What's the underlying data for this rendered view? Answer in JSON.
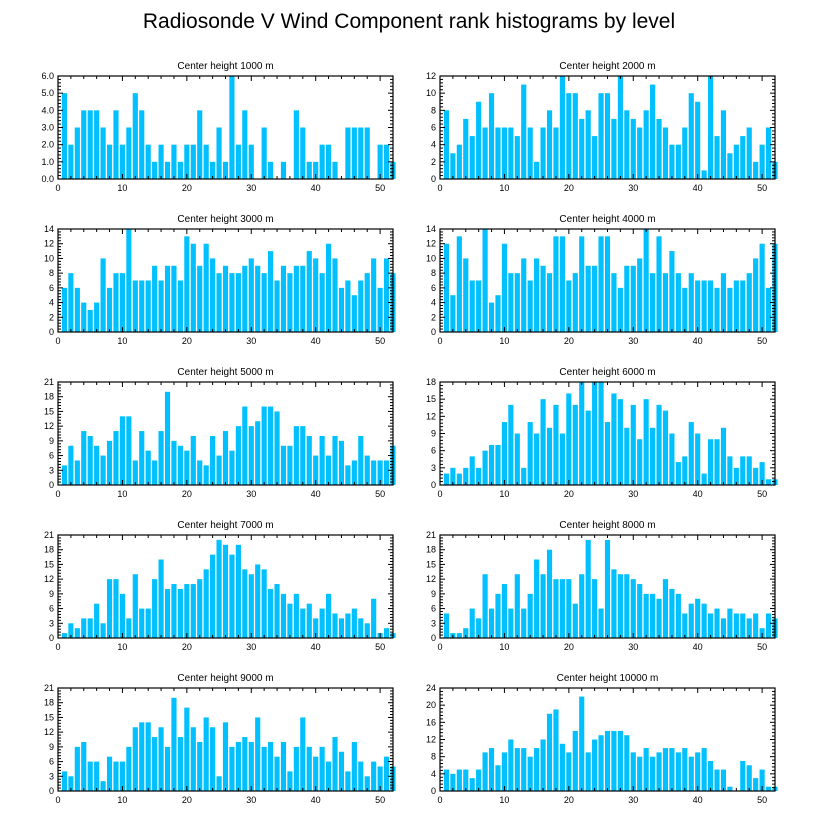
{
  "title": "Radiosonde V Wind Component rank histograms by level",
  "colors": {
    "bar": "#00c0ff",
    "axis": "#000000"
  },
  "chart_data": [
    {
      "type": "bar",
      "title": "Center height 1000 m",
      "xlim": [
        0,
        52
      ],
      "ylim": [
        0,
        6
      ],
      "xticks": [
        0,
        10,
        20,
        30,
        40,
        50
      ],
      "yticks": [
        0,
        1,
        2,
        3,
        4,
        5,
        6
      ],
      "ytick_labels": [
        "0.0",
        "1.0",
        "2.0",
        "3.0",
        "4.0",
        "5.0",
        "6.0"
      ],
      "values": [
        5,
        2,
        3,
        4,
        4,
        4,
        3,
        2,
        4,
        2,
        3,
        5,
        4,
        2,
        1,
        2,
        1,
        2,
        1,
        2,
        2,
        4,
        2,
        1,
        3,
        1,
        6,
        2,
        4,
        2,
        0,
        3,
        1,
        0,
        1,
        0,
        4,
        3,
        1,
        1,
        2,
        2,
        1,
        0,
        3,
        3,
        3,
        3,
        0,
        2,
        2,
        1
      ]
    },
    {
      "type": "bar",
      "title": "Center height 2000 m",
      "xlim": [
        0,
        52
      ],
      "ylim": [
        0,
        12
      ],
      "xticks": [
        0,
        10,
        20,
        30,
        40,
        50
      ],
      "yticks": [
        0,
        2,
        4,
        6,
        8,
        10,
        12
      ],
      "ytick_labels": [
        "0",
        "2",
        "4",
        "6",
        "8",
        "10",
        "12"
      ],
      "values": [
        8,
        3,
        4,
        7,
        5,
        9,
        6,
        10,
        6,
        6,
        6,
        5,
        11,
        6,
        2,
        6,
        8,
        6,
        12,
        10,
        10,
        7,
        8,
        5,
        10,
        10,
        7,
        12,
        8,
        7,
        6,
        8,
        11,
        7,
        6,
        4,
        4,
        6,
        10,
        9,
        1,
        12,
        5,
        8,
        3,
        4,
        5,
        6,
        2,
        4,
        6,
        2
      ]
    },
    {
      "type": "bar",
      "title": "Center height 3000 m",
      "xlim": [
        0,
        52
      ],
      "ylim": [
        0,
        14
      ],
      "xticks": [
        0,
        10,
        20,
        30,
        40,
        50
      ],
      "yticks": [
        0,
        2,
        4,
        6,
        8,
        10,
        12,
        14
      ],
      "ytick_labels": [
        "0",
        "2",
        "4",
        "6",
        "8",
        "10",
        "12",
        "14"
      ],
      "values": [
        6,
        8,
        6,
        4,
        3,
        4,
        10,
        6,
        8,
        8,
        14,
        7,
        7,
        7,
        9,
        7,
        9,
        9,
        7,
        13,
        12,
        9,
        12,
        10,
        8,
        9,
        8,
        8,
        9,
        10,
        9,
        8,
        11,
        7,
        9,
        8,
        9,
        9,
        11,
        10,
        8,
        12,
        10,
        6,
        7,
        5,
        7,
        8,
        10,
        6,
        10,
        8
      ]
    },
    {
      "type": "bar",
      "title": "Center height 4000 m",
      "xlim": [
        0,
        52
      ],
      "ylim": [
        0,
        14
      ],
      "xticks": [
        0,
        10,
        20,
        30,
        40,
        50
      ],
      "yticks": [
        0,
        2,
        4,
        6,
        8,
        10,
        12,
        14
      ],
      "ytick_labels": [
        "0",
        "2",
        "4",
        "6",
        "8",
        "10",
        "12",
        "14"
      ],
      "values": [
        12,
        5,
        13,
        10,
        7,
        7,
        14,
        4,
        5,
        12,
        8,
        8,
        10,
        7,
        10,
        9,
        8,
        13,
        13,
        7,
        8,
        13,
        9,
        9,
        13,
        13,
        8,
        6,
        9,
        9,
        10,
        14,
        8,
        13,
        8,
        11,
        8,
        6,
        8,
        7,
        7,
        7,
        6,
        8,
        6,
        7,
        7,
        8,
        10,
        12,
        6,
        12
      ]
    },
    {
      "type": "bar",
      "title": "Center height 5000 m",
      "xlim": [
        0,
        52
      ],
      "ylim": [
        0,
        21
      ],
      "xticks": [
        0,
        10,
        20,
        30,
        40,
        50
      ],
      "yticks": [
        0,
        3,
        6,
        9,
        12,
        15,
        18,
        21
      ],
      "ytick_labels": [
        "0",
        "3",
        "6",
        "9",
        "12",
        "15",
        "18",
        "21"
      ],
      "values": [
        4,
        8,
        5,
        11,
        10,
        8,
        6,
        9,
        11,
        14,
        14,
        5,
        11,
        7,
        5,
        11,
        19,
        9,
        8,
        7,
        10,
        5,
        4,
        10,
        6,
        11,
        7,
        12,
        16,
        12,
        13,
        16,
        16,
        15,
        8,
        8,
        12,
        12,
        10,
        6,
        10,
        6,
        10,
        9,
        4,
        5,
        10,
        6,
        5,
        5,
        5,
        8
      ]
    },
    {
      "type": "bar",
      "title": "Center height 6000 m",
      "xlim": [
        0,
        52
      ],
      "ylim": [
        0,
        18
      ],
      "xticks": [
        0,
        10,
        20,
        30,
        40,
        50
      ],
      "yticks": [
        0,
        3,
        6,
        9,
        12,
        15,
        18
      ],
      "ytick_labels": [
        "0",
        "3",
        "6",
        "9",
        "12",
        "15",
        "18"
      ],
      "values": [
        2,
        3,
        2,
        3,
        5,
        3,
        6,
        7,
        7,
        11,
        14,
        9,
        3,
        11,
        9,
        15,
        10,
        14,
        9,
        16,
        14,
        18,
        13,
        18,
        18,
        11,
        16,
        15,
        10,
        14,
        8,
        15,
        10,
        14,
        13,
        9,
        4,
        5,
        11,
        9,
        2,
        8,
        8,
        10,
        5,
        3,
        5,
        5,
        3,
        4,
        1,
        1
      ]
    },
    {
      "type": "bar",
      "title": "Center height 7000 m",
      "xlim": [
        0,
        52
      ],
      "ylim": [
        0,
        21
      ],
      "xticks": [
        0,
        10,
        20,
        30,
        40,
        50
      ],
      "yticks": [
        0,
        3,
        6,
        9,
        12,
        15,
        18,
        21
      ],
      "ytick_labels": [
        "0",
        "3",
        "6",
        "9",
        "12",
        "15",
        "18",
        "21"
      ],
      "values": [
        1,
        3,
        2,
        4,
        4,
        7,
        3,
        12,
        12,
        9,
        4,
        13,
        6,
        6,
        12,
        16,
        10,
        11,
        10,
        11,
        11,
        12,
        14,
        17,
        20,
        19,
        17,
        19,
        14,
        13,
        15,
        14,
        10,
        11,
        9,
        7,
        9,
        6,
        7,
        4,
        6,
        9,
        5,
        4,
        5,
        6,
        4,
        3,
        8,
        1,
        2,
        1
      ]
    },
    {
      "type": "bar",
      "title": "Center height 8000 m",
      "xlim": [
        0,
        52
      ],
      "ylim": [
        0,
        21
      ],
      "xticks": [
        0,
        10,
        20,
        30,
        40,
        50
      ],
      "yticks": [
        0,
        3,
        6,
        9,
        12,
        15,
        18,
        21
      ],
      "ytick_labels": [
        "0",
        "3",
        "6",
        "9",
        "12",
        "15",
        "18",
        "21"
      ],
      "values": [
        5,
        1,
        1,
        2,
        6,
        4,
        13,
        6,
        9,
        11,
        6,
        13,
        6,
        9,
        16,
        13,
        18,
        12,
        12,
        12,
        7,
        13,
        20,
        12,
        6,
        20,
        14,
        13,
        13,
        12,
        11,
        9,
        9,
        8,
        12,
        10,
        9,
        5,
        7,
        8,
        7,
        5,
        6,
        4,
        6,
        5,
        5,
        4,
        5,
        2,
        5,
        4
      ]
    },
    {
      "type": "bar",
      "title": "Center height 9000 m",
      "xlim": [
        0,
        52
      ],
      "ylim": [
        0,
        21
      ],
      "xticks": [
        0,
        10,
        20,
        30,
        40,
        50
      ],
      "yticks": [
        0,
        3,
        6,
        9,
        12,
        15,
        18,
        21
      ],
      "ytick_labels": [
        "0",
        "3",
        "6",
        "9",
        "12",
        "15",
        "18",
        "21"
      ],
      "values": [
        4,
        3,
        9,
        10,
        6,
        6,
        2,
        7,
        6,
        6,
        9,
        13,
        14,
        14,
        11,
        13,
        9,
        19,
        11,
        17,
        13,
        10,
        15,
        13,
        3,
        14,
        9,
        10,
        11,
        10,
        15,
        9,
        10,
        7,
        10,
        4,
        9,
        15,
        9,
        7,
        9,
        6,
        11,
        8,
        4,
        10,
        6,
        3,
        6,
        5,
        7,
        5
      ]
    },
    {
      "type": "bar",
      "title": "Center height 10000 m",
      "xlim": [
        0,
        52
      ],
      "ylim": [
        0,
        24
      ],
      "xticks": [
        0,
        10,
        20,
        30,
        40,
        50
      ],
      "yticks": [
        0,
        4,
        8,
        12,
        16,
        20,
        24
      ],
      "ytick_labels": [
        "0",
        "4",
        "8",
        "12",
        "16",
        "20",
        "24"
      ],
      "values": [
        5,
        4,
        5,
        5,
        3,
        5,
        9,
        10,
        6,
        9,
        12,
        10,
        10,
        8,
        10,
        12,
        18,
        19,
        11,
        9,
        14,
        22,
        9,
        12,
        13,
        14,
        14,
        14,
        13,
        9,
        8,
        10,
        8,
        9,
        10,
        10,
        9,
        10,
        8,
        9,
        10,
        7,
        5,
        5,
        1,
        0,
        7,
        6,
        3,
        5,
        1,
        1
      ]
    }
  ]
}
